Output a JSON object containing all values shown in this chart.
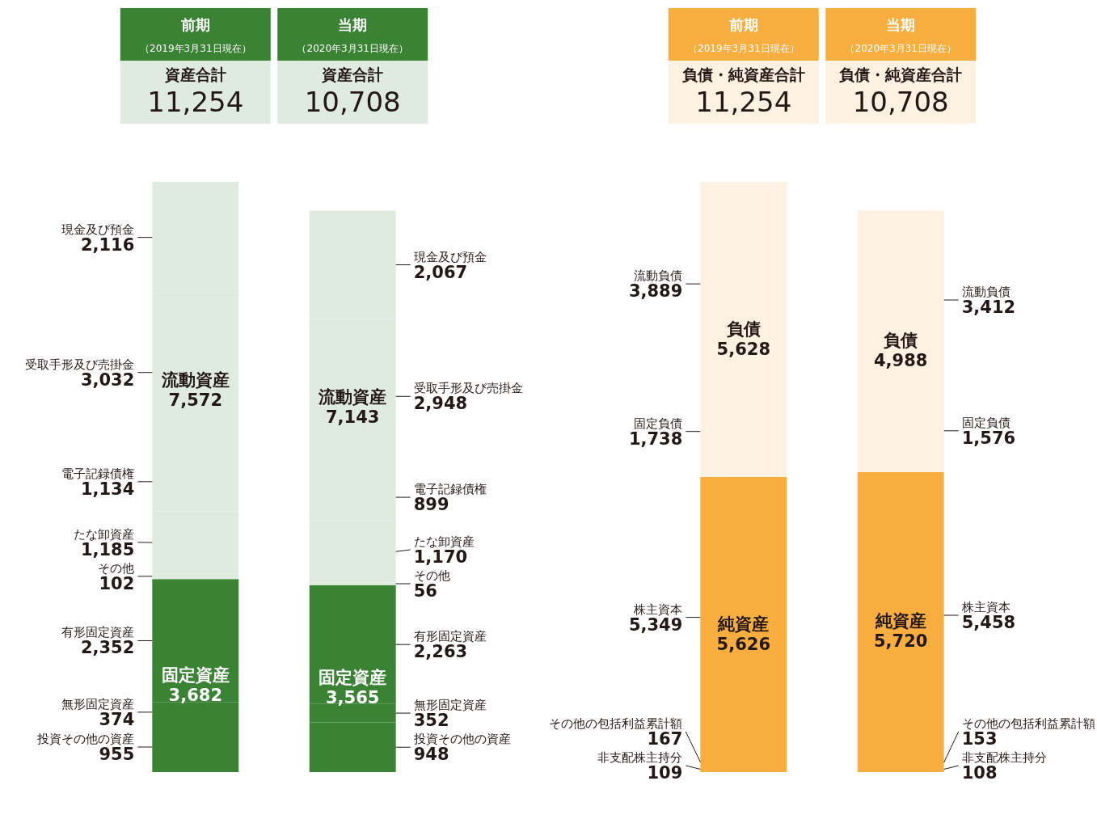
{
  "chart_data": [
    {
      "type": "bar",
      "stacked": true,
      "categories": [
        "前期",
        "当期"
      ],
      "series": [
        {
          "name": "投資その他の資産",
          "color": "#3a8334",
          "values": [
            955,
            948
          ],
          "value_labels": [
            "955",
            "948"
          ]
        },
        {
          "name": "無形固定資産",
          "color": "#3a8334",
          "values": [
            374,
            352
          ],
          "value_labels": [
            "374",
            "352"
          ]
        },
        {
          "name": "有形固定資産",
          "color": "#3a8334",
          "values": [
            2352,
            2263
          ],
          "value_labels": [
            "2,352",
            "2,263"
          ]
        },
        {
          "name": "その他",
          "color": "#e0ebdf",
          "values": [
            102,
            56
          ],
          "value_labels": [
            "102",
            "56"
          ]
        },
        {
          "name": "たな卸資産",
          "color": "#e0ebdf",
          "values": [
            1185,
            1170
          ],
          "value_labels": [
            "1,185",
            "1,170"
          ]
        },
        {
          "name": "電子記録債権",
          "color": "#e0ebdf",
          "values": [
            1134,
            899
          ],
          "value_labels": [
            "1,134",
            "899"
          ]
        },
        {
          "name": "受取手形及び売掛金",
          "color": "#e0ebdf",
          "values": [
            3032,
            2948
          ],
          "value_labels": [
            "3,032",
            "2,948"
          ]
        },
        {
          "name": "現金及び預金",
          "color": "#e0ebdf",
          "values": [
            2116,
            2067
          ],
          "value_labels": [
            "2,116",
            "2,067"
          ]
        }
      ],
      "annotations": [
        "（2019年3月31日現在）",
        "資産合計",
        "11,254",
        "（2020年3月31日現在）",
        "資産合計",
        "10,708",
        "固定資産",
        "3,682",
        "固定資産",
        "3,565",
        "流動資産",
        "7,572",
        "流動資産",
        "7,143"
      ]
    },
    {
      "type": "bar",
      "stacked": true,
      "categories": [
        "前期",
        "当期"
      ],
      "series": [
        {
          "name": "非支配株主持分",
          "color": "#f8ae3f",
          "values": [
            109,
            108
          ],
          "value_labels": [
            "109",
            "108"
          ]
        },
        {
          "name": "その他の包括利益累計額",
          "color": "#f8ae3f",
          "values": [
            167,
            153
          ],
          "value_labels": [
            "167",
            "153"
          ]
        },
        {
          "name": "株主資本",
          "color": "#f8ae3f",
          "values": [
            5349,
            5458
          ],
          "value_labels": [
            "5,349",
            "5,458"
          ]
        },
        {
          "name": "固定負債",
          "color": "#fdf1e2",
          "values": [
            1738,
            1576
          ],
          "value_labels": [
            "1,738",
            "1,576"
          ]
        },
        {
          "name": "流動負債",
          "color": "#fdf1e2",
          "values": [
            3889,
            3412
          ],
          "value_labels": [
            "3,889",
            "3,412"
          ]
        }
      ],
      "annotations": [
        "（2019年3月31日現在）",
        "負債・純資産合計",
        "11,254",
        "（2020年3月31日現在）",
        "負債・純資産合計",
        "10,708",
        "純資産",
        "5,626",
        "純資産",
        "5,720",
        "負債",
        "5,628",
        "負債",
        "4,988"
      ]
    }
  ]
}
